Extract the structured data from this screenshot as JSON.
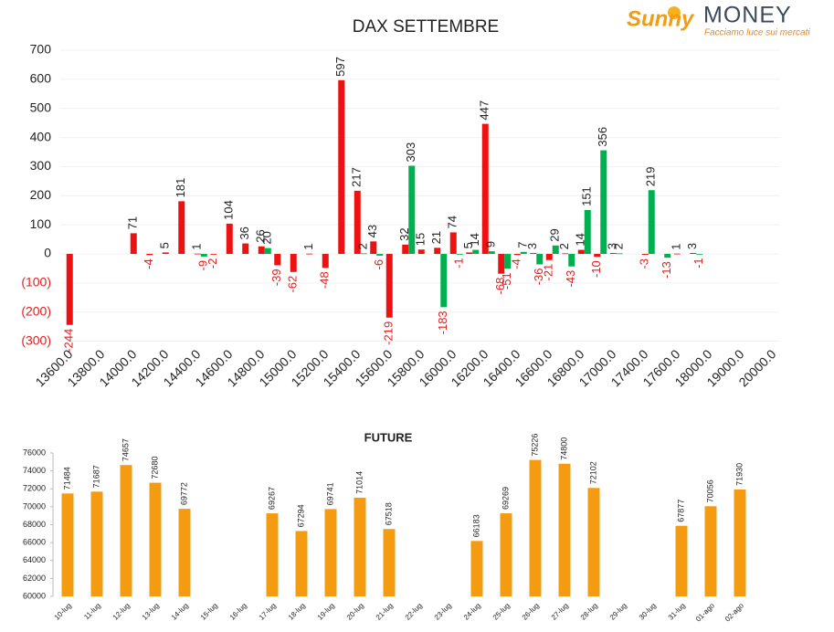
{
  "logo": {
    "brand": "Sunny",
    "name": "MONEY",
    "tagline": "Facciamo luce sui mercati"
  },
  "chart_data": [
    {
      "type": "bar",
      "title": "DAX SETTEMBRE",
      "categories": [
        "13600.0",
        null,
        "13800.0",
        null,
        "14000.0",
        null,
        "14200.0",
        null,
        "14400.0",
        null,
        "14600.0",
        null,
        "14800.0",
        null,
        "15000.0",
        null,
        "15200.0",
        null,
        "15400.0",
        null,
        "15600.0",
        null,
        "15800.0",
        null,
        "16000.0",
        null,
        "16200.0",
        null,
        "16400.0",
        null,
        "16600.0",
        null,
        "16800.0",
        null,
        "17000.0",
        null,
        "17400.0",
        null,
        "17600.0",
        null,
        "18000.0",
        null,
        "19000.0",
        null,
        "20000.0"
      ],
      "series": [
        {
          "color": "#ee1111",
          "values": [
            -244,
            null,
            null,
            null,
            71,
            -4,
            5,
            181,
            1,
            -2,
            104,
            36,
            26,
            -39,
            -62,
            1,
            -48,
            597,
            217,
            43,
            -219,
            32,
            15,
            21,
            74,
            5,
            447,
            -68,
            -4,
            3,
            -21,
            2,
            14,
            -10,
            3,
            null,
            -3,
            null,
            1,
            3,
            null,
            null,
            null,
            null,
            null
          ]
        },
        {
          "color": "#00b050",
          "values": [
            null,
            null,
            null,
            null,
            null,
            null,
            null,
            null,
            -9,
            null,
            null,
            null,
            20,
            null,
            null,
            null,
            null,
            null,
            2,
            -6,
            null,
            303,
            null,
            -183,
            -1,
            14,
            9,
            -51,
            7,
            -36,
            29,
            -43,
            151,
            356,
            2,
            null,
            219,
            -13,
            null,
            -1,
            null,
            null,
            null,
            null,
            null
          ]
        }
      ],
      "ylim": [
        -300,
        700
      ],
      "yticks": [
        700,
        600,
        500,
        400,
        300,
        200,
        100,
        0,
        {
          "value": -100,
          "label": "(100)"
        },
        {
          "value": -200,
          "label": "(200)"
        },
        {
          "value": -300,
          "label": "(300)"
        }
      ],
      "grid": true,
      "negative_label_color": "#e02020"
    },
    {
      "type": "bar",
      "title": "FUTURE",
      "categories": [
        "10-lug",
        "11-lug",
        "12-lug",
        "13-lug",
        "14-lug",
        "15-lug",
        "16-lug",
        "17-lug",
        "18-lug",
        "19-lug",
        "20-lug",
        "21-lug",
        "22-lug",
        "23-lug",
        "24-lug",
        "25-lug",
        "26-lug",
        "27-lug",
        "28-lug",
        "29-lug",
        "30-lug",
        "31-lug",
        "01-ago",
        "02-ago"
      ],
      "values": [
        71484,
        71687,
        74657,
        72680,
        69772,
        null,
        null,
        69267,
        67294,
        69741,
        71014,
        67518,
        null,
        null,
        66183,
        69269,
        75226,
        74800,
        72102,
        null,
        null,
        67877,
        70056,
        71930
      ],
      "color": "#f39c12",
      "ylim": [
        60000,
        76000
      ],
      "yticks": [
        60000,
        62000,
        64000,
        66000,
        68000,
        70000,
        72000,
        74000,
        76000
      ],
      "grid": false
    }
  ]
}
